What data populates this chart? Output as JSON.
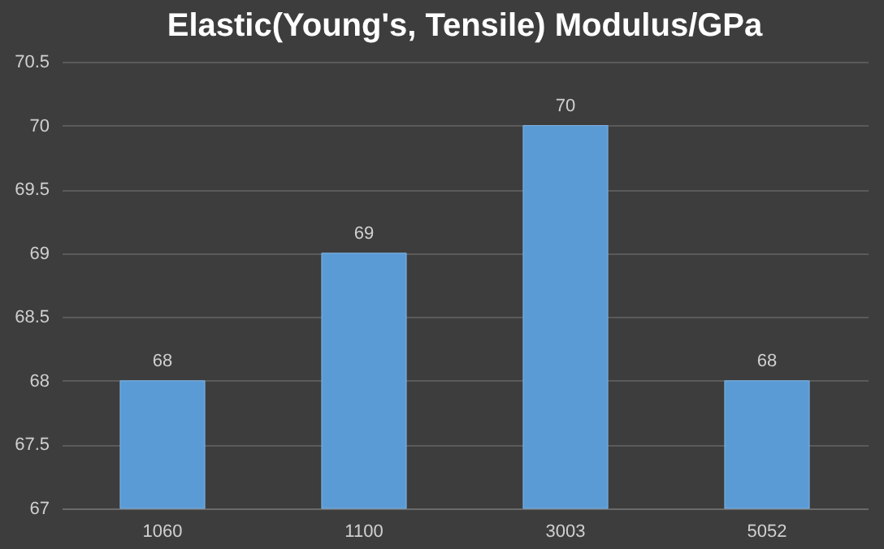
{
  "chart_data": {
    "type": "bar",
    "title": "Elastic(Young's, Tensile) Modulus/GPa",
    "categories": [
      "1060",
      "1100",
      "3003",
      "5052"
    ],
    "values": [
      68,
      69,
      70,
      68
    ],
    "color": "#5b9bd5",
    "ylim": [
      67,
      70.5
    ],
    "yticks": [
      67,
      67.5,
      68,
      68.5,
      69,
      69.5,
      70,
      70.5
    ],
    "grid": "y",
    "data_labels": true
  }
}
